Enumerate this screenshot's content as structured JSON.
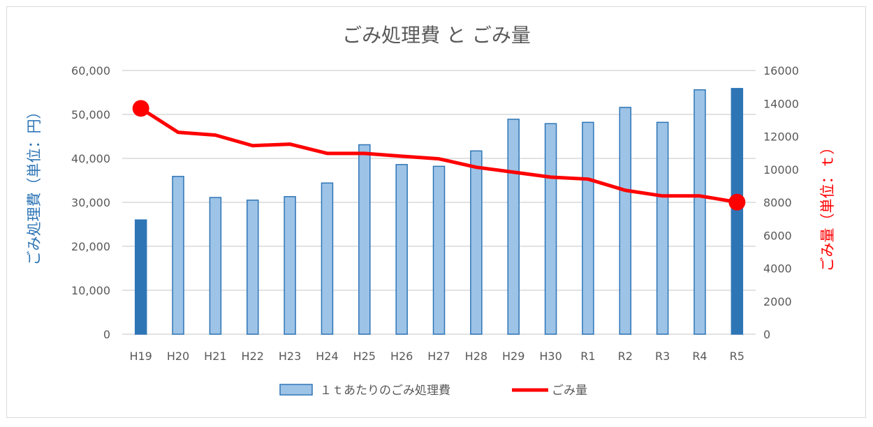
{
  "chart_data": {
    "type": "bar+line",
    "title": "ごみ処理費 と ごみ量",
    "categories": [
      "H19",
      "H20",
      "H21",
      "H22",
      "H23",
      "H24",
      "H25",
      "H26",
      "H27",
      "H28",
      "H29",
      "H30",
      "R1",
      "R2",
      "R3",
      "R4",
      "R5"
    ],
    "series": [
      {
        "name": "１ｔあたりのごみ処理費",
        "type": "bar",
        "axis": "left",
        "values": [
          26000,
          35900,
          31100,
          30500,
          31300,
          34400,
          43100,
          38600,
          38200,
          41700,
          48900,
          47900,
          48200,
          51600,
          48200,
          55600,
          55900
        ],
        "color": "#9dc3e6",
        "highlight_color": "#2e75b6",
        "highlighted": [
          "H19",
          "R5"
        ]
      },
      {
        "name": "ごみ量",
        "type": "line",
        "axis": "right",
        "values": [
          13700,
          12250,
          12080,
          11440,
          11530,
          10970,
          10970,
          10800,
          10640,
          10130,
          9830,
          9530,
          9410,
          8730,
          8390,
          8390,
          8010
        ],
        "color": "#ff0000",
        "markers": [
          "H19",
          "R5"
        ]
      }
    ],
    "ylabel": "ごみ処理費（単位：円）",
    "ylabel_color": "#2e75b6",
    "y2label": "ごみ量（単位：ｔ）",
    "y2label_color": "#ff0000",
    "ylim": [
      0,
      60000
    ],
    "y_ticks": [
      "0",
      "10,000",
      "20,000",
      "30,000",
      "40,000",
      "50,000",
      "60,000"
    ],
    "y2lim": [
      0,
      16000
    ],
    "y2_ticks": [
      "0",
      "2000",
      "4000",
      "6000",
      "8000",
      "10000",
      "12000",
      "14000",
      "16000"
    ],
    "grid": true,
    "legend": "bottom"
  }
}
